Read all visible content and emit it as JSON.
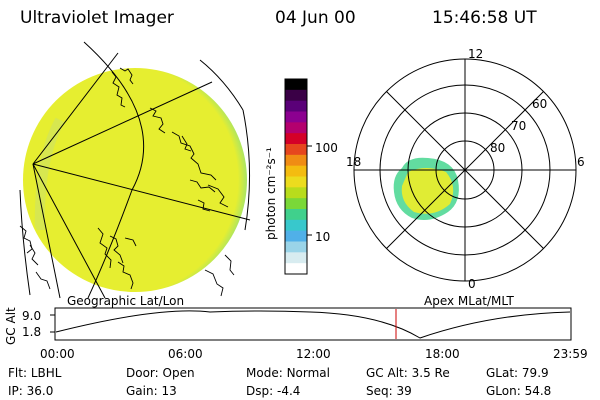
{
  "header": {
    "instrument": "Ultraviolet Imager",
    "date": "04 Jun 00",
    "time": "15:46:58 UT"
  },
  "colorbar": {
    "unit_label": "photon cm⁻²s⁻¹",
    "ticks": [
      "100",
      "10"
    ],
    "colors": [
      "#000000",
      "#3a0046",
      "#5a0078",
      "#8c0090",
      "#b4006e",
      "#d40028",
      "#e6461e",
      "#f08c14",
      "#f4bc10",
      "#ecdc1e",
      "#b8dc1c",
      "#7ad838",
      "#40d08c",
      "#38c8cc",
      "#50b0e8",
      "#9ad4e8",
      "#d8ecf0",
      "#ffffff"
    ]
  },
  "geo_panel": {
    "label": "Geographic Lat/Lon",
    "fill_color": "#e6ee30",
    "edge_color": "#5fd8a4"
  },
  "polar_panel": {
    "label": "Apex MLat/MLT",
    "mlt_labels": {
      "top": "12",
      "left": "18",
      "right": "6",
      "bottom": "0"
    },
    "mlat_labels": [
      "60",
      "70",
      "80"
    ],
    "fill_color": "#e0ec34",
    "edge_color": "#62dca0"
  },
  "altitude_plot": {
    "ylabel": "GC Alt",
    "yticks": [
      "9.0",
      "1.8"
    ],
    "xticks": [
      "00:00",
      "06:00",
      "12:00",
      "18:00",
      "23:59"
    ],
    "marker_time": "15:47",
    "marker_color": "#cc0000"
  },
  "info_rows": [
    [
      {
        "key": "Flt:",
        "val": "LBHL"
      },
      {
        "key": "Door:",
        "val": "Open"
      },
      {
        "key": "Mode:",
        "val": "Normal"
      },
      {
        "key": "GC Alt:",
        "val": "3.5 Re"
      },
      {
        "key": "GLat:",
        "val": "79.9"
      }
    ],
    [
      {
        "key": "IP:",
        "val": "36.0"
      },
      {
        "key": "Gain:",
        "val": "13"
      },
      {
        "key": "Dsp:",
        "val": "-4.4"
      },
      {
        "key": "Seq:",
        "val": "39"
      },
      {
        "key": "GLon:",
        "val": "54.8"
      }
    ]
  ]
}
